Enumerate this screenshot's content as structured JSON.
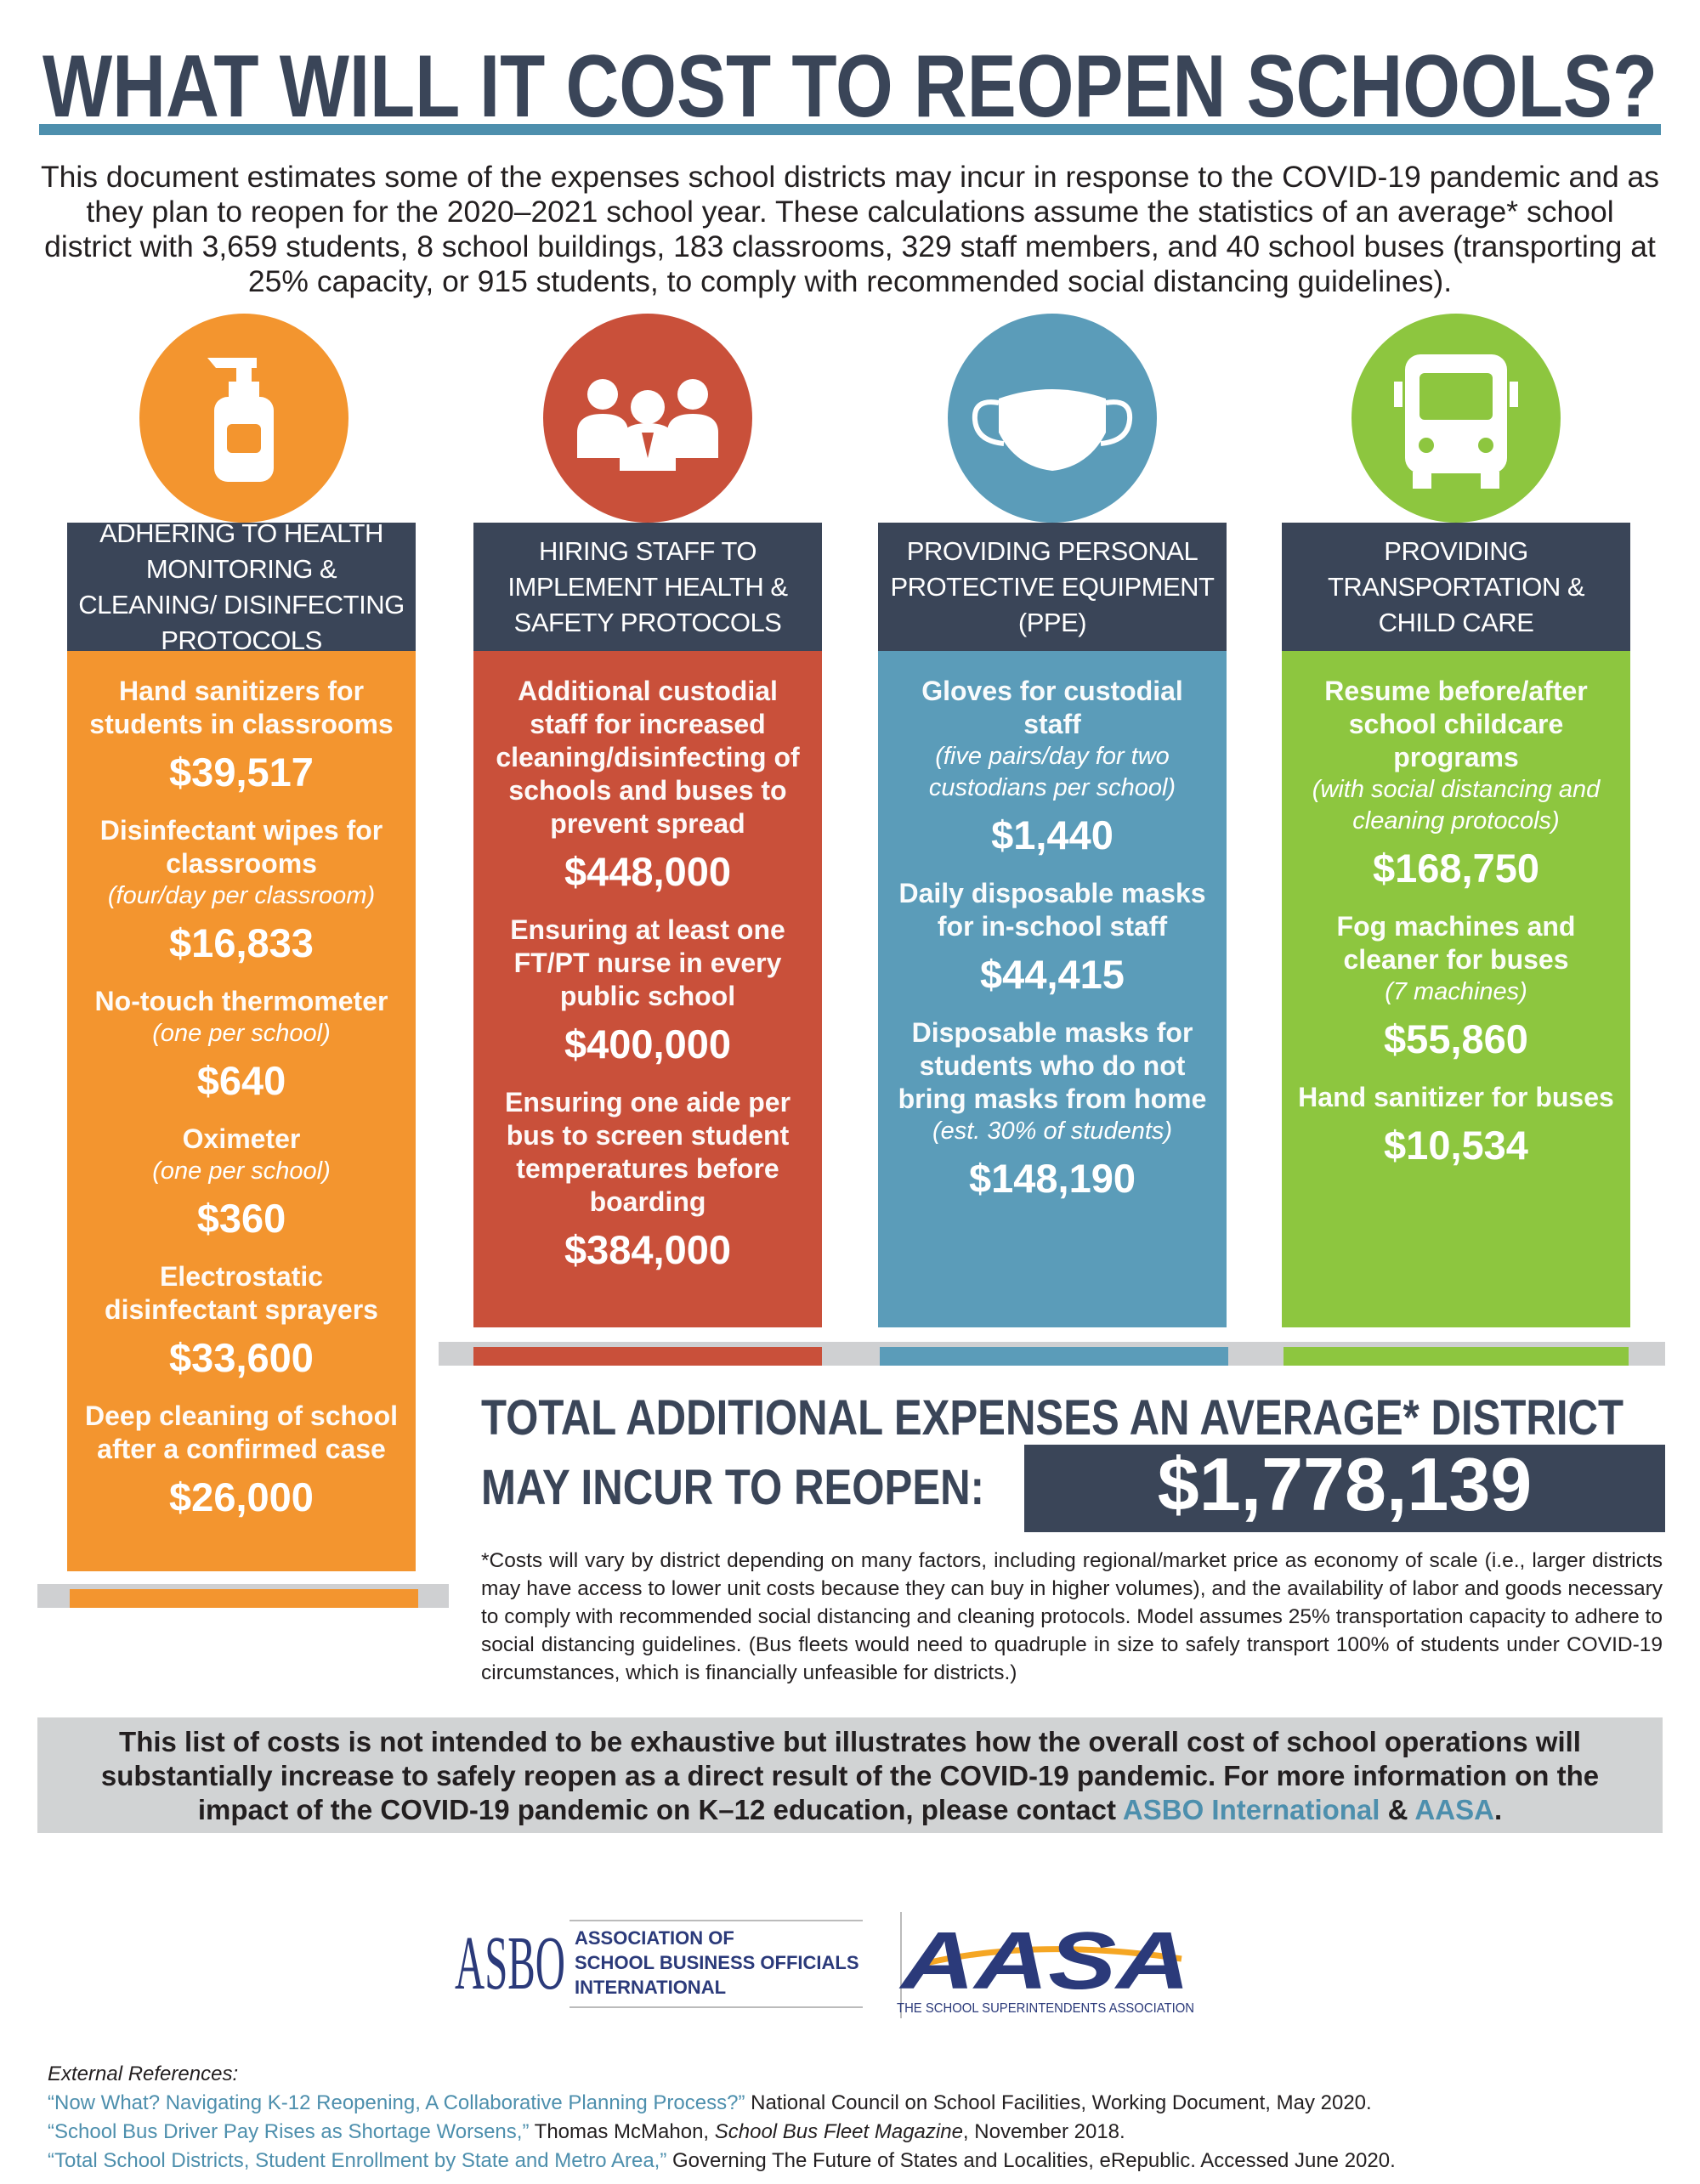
{
  "header": {
    "title": "WHAT WILL IT COST TO REOPEN SCHOOLS?"
  },
  "intro": "This document estimates some of the expenses school districts may incur in response to the COVID-19 pandemic and as they plan to reopen for the 2020–2021 school year. These calculations assume the statistics of an average* school district with 3,659 students, 8 school buildings, 183 classrooms, 329 staff members, and 40 school buses (transporting at 25% capacity, or 915 students, to comply with recommended social distancing guidelines).",
  "columns": [
    {
      "header": "ADHERING TO HEALTH MONITORING & CLEANING/ DISINFECTING PROTOCOLS",
      "color": "#f3952f",
      "items": [
        {
          "label": "Hand sanitizers for students in classrooms",
          "cost": "$39,517"
        },
        {
          "label": "Disinfectant wipes for classrooms",
          "note": "(four/day per classroom)",
          "cost": "$16,833"
        },
        {
          "label": "No-touch thermometer",
          "note": "(one per school)",
          "cost": "$640"
        },
        {
          "label": "Oximeter",
          "note": "(one per school)",
          "cost": "$360"
        },
        {
          "label": "Electrostatic disinfectant sprayers",
          "cost": "$33,600"
        },
        {
          "label": "Deep cleaning of school after a confirmed case",
          "cost": "$26,000"
        }
      ]
    },
    {
      "header": "HIRING STAFF TO IMPLEMENT HEALTH & SAFETY PROTOCOLS",
      "color": "#c9503a",
      "items": [
        {
          "label": "Additional custodial staff for increased cleaning/disinfecting of schools and buses to prevent spread",
          "cost": "$448,000"
        },
        {
          "label": "Ensuring at least one FT/PT nurse in every public school",
          "cost": "$400,000"
        },
        {
          "label": "Ensuring one aide per bus to screen student temperatures before boarding",
          "cost": "$384,000"
        }
      ]
    },
    {
      "header": "PROVIDING PERSONAL PROTECTIVE EQUIPMENT (PPE)",
      "color": "#5b9cb9",
      "items": [
        {
          "label": "Gloves for custodial staff",
          "note": "(five pairs/day for two custodians per school)",
          "cost": "$1,440"
        },
        {
          "label": "Daily disposable masks for in-school staff",
          "cost": "$44,415"
        },
        {
          "label": "Disposable masks for students who do not bring masks from home",
          "note": "(est. 30% of students)",
          "cost": "$148,190"
        }
      ]
    },
    {
      "header": "PROVIDING TRANSPORTATION & CHILD CARE",
      "color": "#8dc63f",
      "items": [
        {
          "label": "Resume before/after school childcare programs",
          "note": "(with social distancing and cleaning protocols)",
          "cost": "$168,750"
        },
        {
          "label": "Fog machines and cleaner for buses",
          "note": "(7 machines)",
          "cost": "$55,860"
        },
        {
          "label": "Hand sanitizer for buses",
          "cost": "$10,534"
        }
      ]
    }
  ],
  "total": {
    "line_1": "TOTAL ADDITIONAL EXPENSES AN AVERAGE* DISTRICT",
    "line_2": "MAY INCUR TO REOPEN:",
    "amount": "$1,778,139"
  },
  "footnote": "*Costs will vary by district depending on many factors, including regional/market price as economy of scale (i.e., larger districts may have access to lower unit costs because they can buy in higher volumes), and the availability of labor and goods necessary to comply with recommended social distancing and cleaning protocols. Model assumes 25% transportation capacity to adhere to social distancing guidelines. (Bus fleets would need to quadruple in size to safely transport 100% of students under COVID-19 circumstances, which is financially unfeasible for districts.)",
  "closing": {
    "text": "This list of costs is not intended to be exhaustive but illustrates how the overall cost of school operations will substantially increase to safely reopen as a direct result of the COVID-19 pandemic. For more information on the impact of the COVID-19 pandemic on K–12 education, please contact",
    "link_1": "ASBO International",
    "joiner": "&",
    "link_2": "AASA",
    "end": "."
  },
  "logos": {
    "asbo_mark": "ASBO",
    "asbo_lines": [
      "ASSOCIATION OF",
      "SCHOOL BUSINESS OFFICIALS",
      "INTERNATIONAL"
    ],
    "aasa_mark": "AASA",
    "aasa_tagline": "THE SCHOOL SUPERINTENDENTS ASSOCIATION"
  },
  "references": {
    "heading": "External References:",
    "items": [
      [
        {
          "text": "“Now What? Navigating K-12 Reopening, A Collaborative Planning Process?”",
          "style": "link"
        },
        {
          "text": " National Council on School Facilities, Working Document, May 2020.",
          "style": "plain"
        }
      ],
      [
        {
          "text": "“School Bus Driver Pay Rises as Shortage Worsens,”",
          "style": "link"
        },
        {
          "text": " Thomas McMahon, ",
          "style": "plain"
        },
        {
          "text": "School Bus Fleet Magazine",
          "style": "italic"
        },
        {
          "text": ", November 2018.",
          "style": "plain"
        }
      ],
      [
        {
          "text": "“Total School Districts, Student Enrollment by State and Metro Area,”",
          "style": "link"
        },
        {
          "text": " Governing The Future of States and Localities, eRepublic. Accessed June 2020.",
          "style": "plain"
        }
      ]
    ]
  }
}
